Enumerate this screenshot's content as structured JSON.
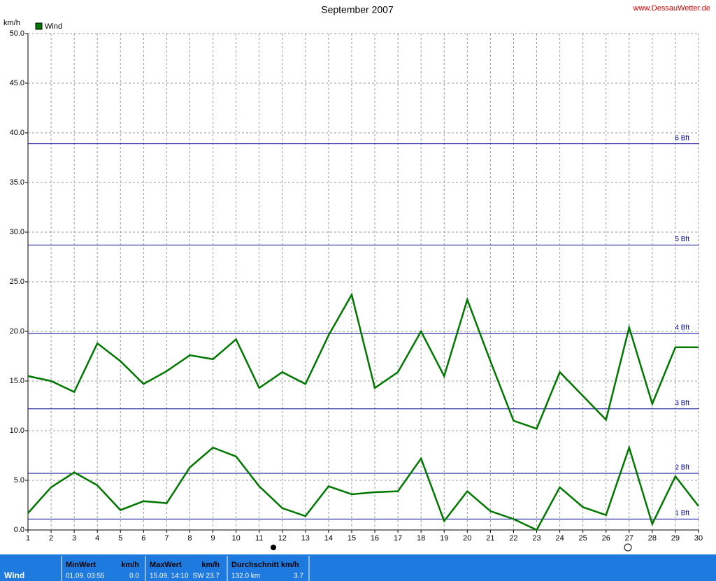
{
  "chart_data": {
    "type": "line",
    "title": "September 2007",
    "source": "www.DessauWetter.de",
    "y_label": "km/h",
    "x": [
      1,
      2,
      3,
      4,
      5,
      6,
      7,
      8,
      9,
      10,
      11,
      12,
      13,
      14,
      15,
      16,
      17,
      18,
      19,
      20,
      21,
      22,
      23,
      24,
      25,
      26,
      27,
      28,
      29,
      30
    ],
    "xlim": [
      1,
      30
    ],
    "xticks": [
      1,
      2,
      3,
      4,
      5,
      6,
      7,
      8,
      9,
      10,
      11,
      12,
      13,
      14,
      15,
      16,
      17,
      18,
      19,
      20,
      21,
      22,
      23,
      24,
      25,
      26,
      27,
      28,
      29,
      30
    ],
    "ylim": [
      0,
      50
    ],
    "yticks": [
      {
        "value": 0,
        "label": "0.0"
      },
      {
        "value": 5,
        "label": "5.0"
      },
      {
        "value": 10,
        "label": "10.0"
      },
      {
        "value": 15,
        "label": "15.0"
      },
      {
        "value": 20,
        "label": "20.0"
      },
      {
        "value": 25,
        "label": "25.0"
      },
      {
        "value": 30,
        "label": "30.0"
      },
      {
        "value": 35,
        "label": "35.0"
      },
      {
        "value": 40,
        "label": "40.0"
      },
      {
        "value": 45,
        "label": "45.0"
      },
      {
        "value": 50,
        "label": "50.0"
      }
    ],
    "grid": true,
    "series": [
      {
        "name": "Wind",
        "color": "#007800",
        "values": [
          15.5,
          15.0,
          13.9,
          18.8,
          17.0,
          14.7,
          16.0,
          17.6,
          17.2,
          19.2,
          14.3,
          15.9,
          14.7,
          19.6,
          23.7,
          14.3,
          15.9,
          20.0,
          15.5,
          23.2,
          17.0,
          11.0,
          10.2,
          15.9,
          13.5,
          11.1,
          20.4,
          12.7,
          18.4,
          18.4
        ]
      },
      {
        "color": "#007800",
        "values": [
          1.7,
          4.3,
          5.8,
          4.5,
          2.0,
          2.9,
          2.7,
          6.3,
          8.3,
          7.4,
          4.4,
          2.2,
          1.4,
          4.4,
          3.6,
          3.8,
          3.9,
          7.2,
          0.9,
          3.9,
          1.9,
          1.1,
          0.0,
          4.3,
          2.3,
          1.5,
          8.3,
          0.6,
          5.4,
          2.4
        ]
      }
    ],
    "reference_lines": [
      {
        "label": "1 Bft",
        "value": 1.1
      },
      {
        "label": "2 Bft",
        "value": 5.7
      },
      {
        "label": "3 Bft",
        "value": 12.2
      },
      {
        "label": "4 Bft",
        "value": 19.8
      },
      {
        "label": "5 Bft",
        "value": 28.7
      },
      {
        "label": "6 Bft",
        "value": 38.9
      }
    ],
    "reference_color": "#000090"
  },
  "stats": {
    "row_label": "Wind",
    "columns": [
      {
        "header": "MinWert",
        "unit": "km/h",
        "left": "01.09.  03:55",
        "right": "0.0"
      },
      {
        "header": "MaxWert",
        "unit": "km/h",
        "left": "15.09.  14:10",
        "right": "SW 23.7"
      },
      {
        "header": "Durchschnitt km/h",
        "unit": "",
        "left": "132.0 km",
        "right": "3.7"
      }
    ]
  }
}
